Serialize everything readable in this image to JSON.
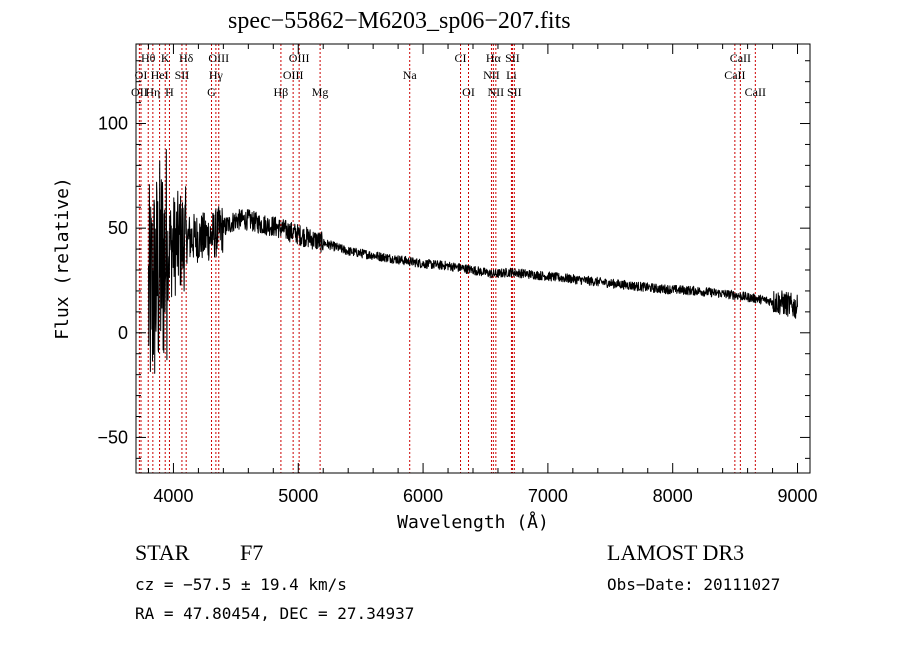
{
  "chart_data": {
    "type": "line",
    "title": "spec−55862−M6203_sp06−207.fits",
    "xlabel": "Wavelength (Å)",
    "ylabel": "Flux (relative)",
    "xlim": [
      3700,
      9100
    ],
    "ylim": [
      -67,
      138
    ],
    "x_ticks": [
      4000,
      5000,
      6000,
      7000,
      8000,
      9000
    ],
    "x_tick_labels": [
      "4000",
      "5000",
      "6000",
      "7000",
      "8000",
      "9000"
    ],
    "y_ticks": [
      -50,
      0,
      50,
      100
    ],
    "y_tick_labels": [
      "−50",
      "0",
      "50",
      "100"
    ],
    "grid": false,
    "series": [
      {
        "name": "spectrum",
        "x": [
          3800,
          3950,
          4100,
          4300,
          4400,
          4500,
          4600,
          4700,
          4800,
          4900,
          5000,
          5100,
          5200,
          5300,
          5400,
          5500,
          5600,
          5700,
          5800,
          5900,
          6000,
          6200,
          6400,
          6563,
          6700,
          7000,
          7300,
          7600,
          7900,
          8200,
          8500,
          8700,
          8900,
          9000
        ],
        "values": [
          15,
          40,
          45,
          46,
          50,
          54,
          54,
          52,
          51,
          49,
          47,
          45,
          43,
          41,
          39,
          38,
          37,
          36,
          35,
          34,
          33,
          32,
          30,
          28,
          29,
          27,
          25,
          23,
          21,
          20,
          18,
          16,
          14,
          12
        ]
      }
    ],
    "line_labels": [
      {
        "text": "Hθ",
        "x": 3798,
        "row": 1
      },
      {
        "text": "K",
        "x": 3934,
        "row": 1
      },
      {
        "text": "Hδ",
        "x": 4102,
        "row": 1
      },
      {
        "text": "OIII",
        "x": 4363,
        "row": 1
      },
      {
        "text": "OIII",
        "x": 5007,
        "row": 1
      },
      {
        "text": "CI",
        "x": 6300,
        "row": 1
      },
      {
        "text": "Hα",
        "x": 6563,
        "row": 1
      },
      {
        "text": "SII",
        "x": 6716,
        "row": 1
      },
      {
        "text": "CaII",
        "x": 8542,
        "row": 1
      },
      {
        "text": "OI",
        "x": 3740,
        "row": 2
      },
      {
        "text": "HeI",
        "x": 3889,
        "row": 2
      },
      {
        "text": "SII",
        "x": 4068,
        "row": 2
      },
      {
        "text": "Hγ",
        "x": 4340,
        "row": 2
      },
      {
        "text": "OIII",
        "x": 4959,
        "row": 2
      },
      {
        "text": "Na",
        "x": 5893,
        "row": 2
      },
      {
        "text": "NII",
        "x": 6548,
        "row": 2
      },
      {
        "text": "Li",
        "x": 6708,
        "row": 2
      },
      {
        "text": "CaII",
        "x": 8498,
        "row": 2
      },
      {
        "text": "OII",
        "x": 3727,
        "row": 3
      },
      {
        "text": "Hη",
        "x": 3835,
        "row": 3
      },
      {
        "text": "H",
        "x": 3968,
        "row": 3
      },
      {
        "text": "G",
        "x": 4305,
        "row": 3
      },
      {
        "text": "Hβ",
        "x": 4861,
        "row": 3
      },
      {
        "text": "Mg",
        "x": 5175,
        "row": 3
      },
      {
        "text": "OI",
        "x": 6364,
        "row": 3
      },
      {
        "text": "NII",
        "x": 6583,
        "row": 3
      },
      {
        "text": "SII",
        "x": 6731,
        "row": 3
      },
      {
        "text": "CaII",
        "x": 8662,
        "row": 3
      }
    ],
    "line_marker_x": [
      3727,
      3740,
      3798,
      3835,
      3889,
      3934,
      3968,
      4068,
      4102,
      4305,
      4340,
      4363,
      4861,
      4959,
      5007,
      5175,
      5893,
      6300,
      6364,
      6548,
      6563,
      6583,
      6708,
      6716,
      6731,
      8498,
      8542,
      8662
    ]
  },
  "info": {
    "class_label": "STAR",
    "subclass": "F7",
    "redshift": "cz = −57.5 ± 19.4 km/s",
    "coords": "RA =  47.80454, DEC =  27.34937",
    "survey": "LAMOST DR3",
    "obs_date": "Obs−Date: 20111027"
  },
  "colors": {
    "line_marker": "#cc0000",
    "spectrum": "#000000",
    "axes": "#000000"
  }
}
